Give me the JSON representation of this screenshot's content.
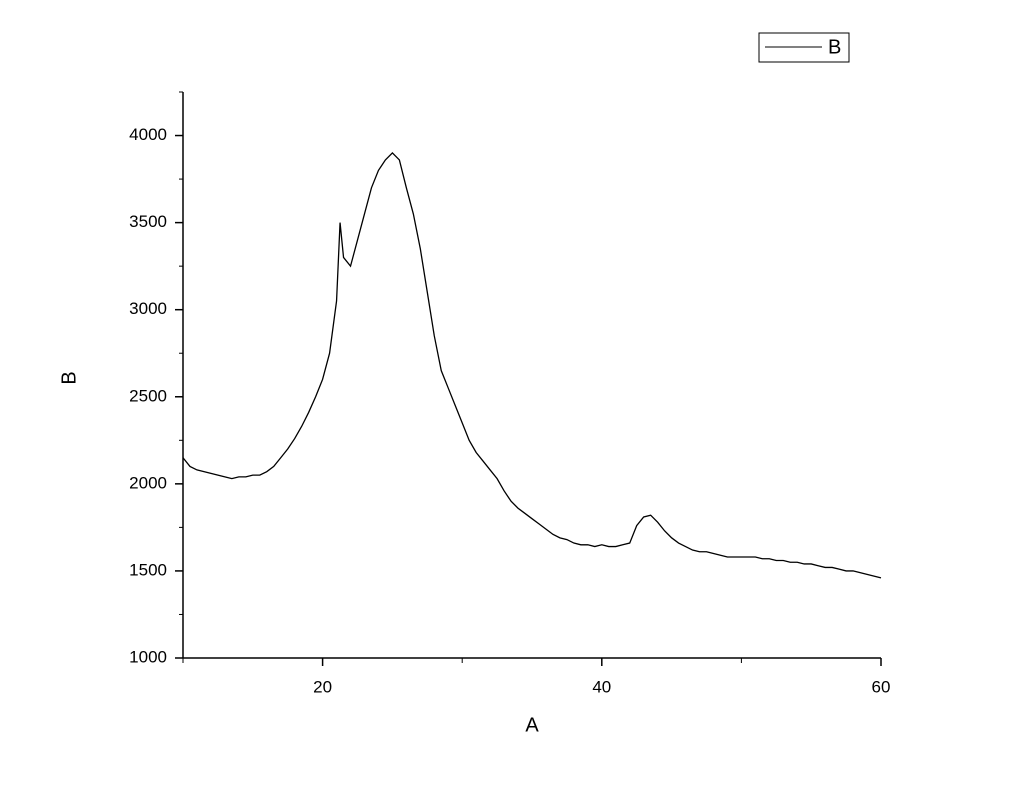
{
  "chart_data": {
    "type": "line",
    "xlabel": "A",
    "ylabel": "B",
    "xlim": [
      10,
      60
    ],
    "xticks": [
      20,
      40,
      60
    ],
    "xminorticks": [
      10,
      30,
      50
    ],
    "ylim": [
      1000,
      4250
    ],
    "yticks": [
      1000,
      1500,
      2000,
      2500,
      3000,
      3500,
      4000
    ],
    "yminorticks": [
      1250,
      1750,
      2250,
      2750,
      3250,
      3750,
      4250
    ],
    "legend": "top-right",
    "x": [
      10,
      10.5,
      11,
      11.5,
      12,
      12.5,
      13,
      13.5,
      14,
      14.5,
      15,
      15.5,
      16,
      16.5,
      17,
      17.5,
      18,
      18.5,
      19,
      19.5,
      20,
      20.5,
      21,
      21.25,
      21.5,
      22,
      22.5,
      23,
      23.5,
      24,
      24.5,
      25,
      25.5,
      26,
      26.5,
      27,
      27.5,
      28,
      28.5,
      29,
      29.5,
      30,
      30.5,
      31,
      31.5,
      32,
      32.5,
      33,
      33.5,
      34,
      34.5,
      35,
      35.5,
      36,
      36.5,
      37,
      37.5,
      38,
      38.5,
      39,
      39.5,
      40,
      40.5,
      41,
      41.5,
      42,
      42.5,
      43,
      43.5,
      44,
      44.5,
      45,
      45.5,
      46,
      46.5,
      47,
      47.5,
      48,
      48.5,
      49,
      49.5,
      50,
      50.5,
      51,
      51.5,
      52,
      52.5,
      53,
      53.5,
      54,
      54.5,
      55,
      55.5,
      56,
      56.5,
      57,
      57.5,
      58,
      58.5,
      59,
      59.5,
      60
    ],
    "series": [
      {
        "name": "B",
        "color": "#000000",
        "values": [
          2150,
          2100,
          2080,
          2070,
          2060,
          2050,
          2040,
          2030,
          2040,
          2040,
          2050,
          2050,
          2070,
          2100,
          2150,
          2200,
          2260,
          2330,
          2410,
          2500,
          2600,
          2750,
          3050,
          3500,
          3300,
          3250,
          3400,
          3550,
          3700,
          3800,
          3860,
          3900,
          3860,
          3700,
          3550,
          3350,
          3100,
          2850,
          2650,
          2550,
          2450,
          2350,
          2250,
          2180,
          2130,
          2080,
          2030,
          1960,
          1900,
          1860,
          1830,
          1800,
          1770,
          1740,
          1710,
          1690,
          1680,
          1660,
          1650,
          1650,
          1640,
          1650,
          1640,
          1640,
          1650,
          1660,
          1760,
          1810,
          1820,
          1780,
          1730,
          1690,
          1660,
          1640,
          1620,
          1610,
          1610,
          1600,
          1590,
          1580,
          1580,
          1580,
          1580,
          1580,
          1570,
          1570,
          1560,
          1560,
          1550,
          1550,
          1540,
          1540,
          1530,
          1520,
          1520,
          1510,
          1500,
          1500,
          1490,
          1480,
          1470,
          1460
        ]
      }
    ]
  }
}
